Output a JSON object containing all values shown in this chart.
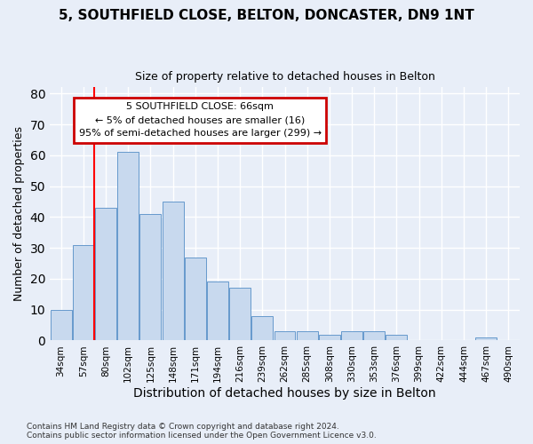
{
  "title_line1": "5, SOUTHFIELD CLOSE, BELTON, DONCASTER, DN9 1NT",
  "title_line2": "Size of property relative to detached houses in Belton",
  "xlabel": "Distribution of detached houses by size in Belton",
  "ylabel": "Number of detached properties",
  "categories": [
    "34sqm",
    "57sqm",
    "80sqm",
    "102sqm",
    "125sqm",
    "148sqm",
    "171sqm",
    "194sqm",
    "216sqm",
    "239sqm",
    "262sqm",
    "285sqm",
    "308sqm",
    "330sqm",
    "353sqm",
    "376sqm",
    "399sqm",
    "422sqm",
    "444sqm",
    "467sqm",
    "490sqm"
  ],
  "values": [
    10,
    31,
    43,
    61,
    41,
    45,
    27,
    19,
    17,
    8,
    3,
    3,
    2,
    3,
    3,
    2,
    0,
    0,
    0,
    1,
    0
  ],
  "bar_color": "#c8d9ee",
  "bar_edge_color": "#6699cc",
  "red_line_x": 1.5,
  "ylim": [
    0,
    82
  ],
  "yticks": [
    0,
    10,
    20,
    30,
    40,
    50,
    60,
    70,
    80
  ],
  "annotation_text": "5 SOUTHFIELD CLOSE: 66sqm\n← 5% of detached houses are smaller (16)\n95% of semi-detached houses are larger (299) →",
  "annotation_box_color": "#ffffff",
  "annotation_box_edge": "#cc0000",
  "footnote": "Contains HM Land Registry data © Crown copyright and database right 2024.\nContains public sector information licensed under the Open Government Licence v3.0.",
  "background_color": "#e8eef8",
  "grid_color": "#ffffff",
  "title1_fontsize": 11,
  "title2_fontsize": 9,
  "ylabel_fontsize": 9,
  "xlabel_fontsize": 10
}
